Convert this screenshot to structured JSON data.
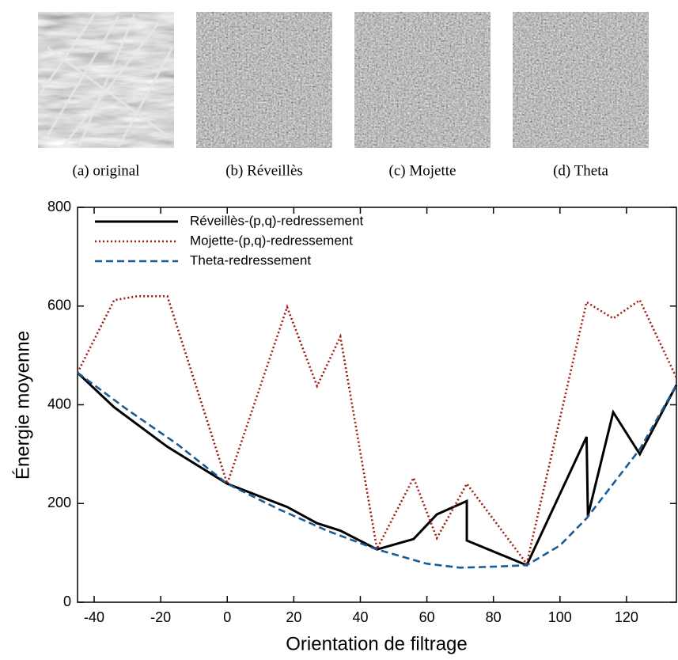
{
  "figure": {
    "panels": [
      {
        "caption": "(a) original"
      },
      {
        "caption": "(b) Réveillès"
      },
      {
        "caption": "(c) Mojette"
      },
      {
        "caption": "(d) Theta"
      }
    ]
  },
  "chart_data": {
    "type": "line",
    "xlabel": "Orientation de filtrage",
    "ylabel": "Énergie moyenne",
    "xlim": [
      -45,
      135
    ],
    "xticks": [
      -40,
      -20,
      0,
      20,
      40,
      60,
      80,
      100,
      120
    ],
    "ylim": [
      0,
      800
    ],
    "yticks": [
      0,
      200,
      400,
      600,
      800
    ],
    "legend": "upper left",
    "series": [
      {
        "name": "Réveillès-(p,q)-redressement",
        "color": "#000000",
        "style": "solid",
        "x": [
          -45,
          -34,
          -18,
          0,
          18,
          27,
          34,
          45,
          56,
          63,
          72,
          72,
          90,
          108,
          108.4,
          116,
          124,
          135
        ],
        "values": [
          465,
          395,
          315,
          240,
          193,
          160,
          145,
          107,
          128,
          178,
          205,
          125,
          75,
          335,
          175,
          385,
          300,
          440
        ]
      },
      {
        "name": "Mojette-(p,q)-redressement",
        "color": "#a01a10",
        "style": "dotted",
        "x": [
          -45,
          -34,
          -27,
          -18,
          0,
          18,
          27,
          34,
          45,
          56,
          63,
          72,
          90,
          108,
          116,
          124,
          135
        ],
        "values": [
          465,
          612,
          620,
          620,
          240,
          598,
          438,
          538,
          108,
          252,
          130,
          240,
          78,
          608,
          575,
          612,
          455
        ]
      },
      {
        "name": "Theta-redressement",
        "color": "#1a5a96",
        "style": "dashed",
        "x": [
          -45,
          -30,
          -15,
          0,
          15,
          30,
          45,
          60,
          70,
          80,
          90,
          100,
          108,
          116,
          124,
          135
        ],
        "values": [
          465,
          390,
          320,
          240,
          190,
          145,
          107,
          78,
          70,
          72,
          75,
          115,
          170,
          240,
          310,
          440
        ]
      }
    ]
  }
}
